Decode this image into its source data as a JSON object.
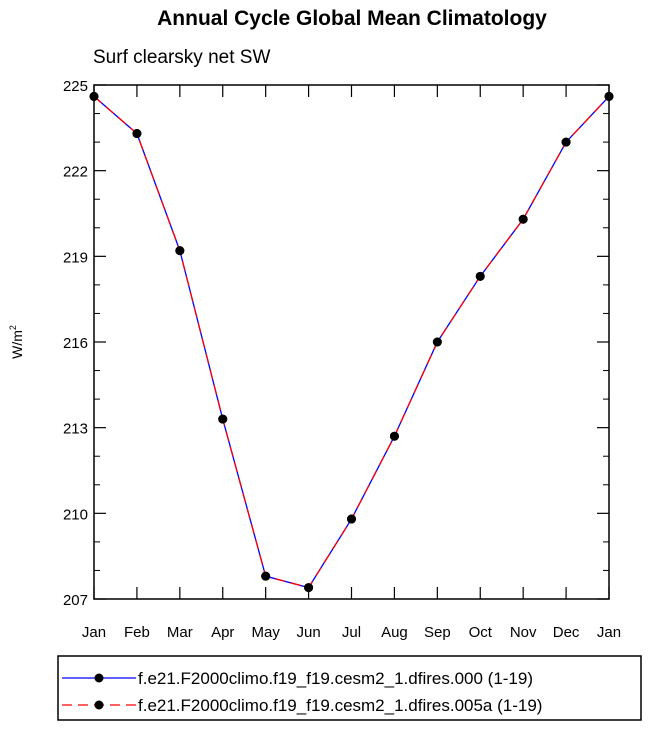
{
  "chart_data": {
    "type": "line",
    "title": "Annual Cycle Global Mean Climatology",
    "subtitle": "Surf clearsky net SW",
    "ylabel": "W/m",
    "ylabel_sup": "2",
    "xlabel": "",
    "ylim": [
      207,
      225
    ],
    "yticks": [
      "207",
      "210",
      "213",
      "216",
      "219",
      "222",
      "225"
    ],
    "categories": [
      "Jan",
      "Feb",
      "Mar",
      "Apr",
      "May",
      "Jun",
      "Jul",
      "Aug",
      "Sep",
      "Oct",
      "Nov",
      "Dec",
      "Jan"
    ],
    "grid": false,
    "legend_placement": "bottom",
    "series": [
      {
        "name": "f.e21.F2000climo.f19_f19.cesm2_1.dfires.000 (1-19)",
        "color": "#0000ff",
        "line_style": "solid",
        "marker_color": "#000000",
        "values": [
          224.6,
          223.3,
          219.2,
          213.3,
          207.8,
          207.4,
          209.8,
          212.7,
          216.0,
          218.3,
          220.3,
          223.0,
          224.6
        ]
      },
      {
        "name": "f.e21.F2000climo.f19_f19.cesm2_1.dfires.005a (1-19)",
        "color": "#ff0000",
        "line_style": "dashed",
        "marker_color": "#000000",
        "values": [
          224.6,
          223.3,
          219.2,
          213.3,
          207.8,
          207.4,
          209.8,
          212.7,
          216.0,
          218.3,
          220.3,
          223.0,
          224.6
        ]
      }
    ]
  }
}
